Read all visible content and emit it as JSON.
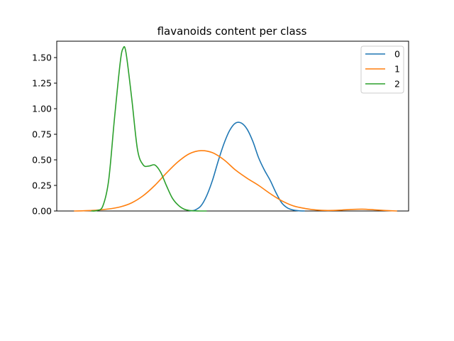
{
  "chart_data": {
    "type": "line",
    "title": "flavanoids content per class",
    "xlabel": "",
    "ylabel": "",
    "xlim": [
      -0.1,
      6.0
    ],
    "ylim": [
      0.0,
      1.66
    ],
    "yticks": [
      0.0,
      0.25,
      0.5,
      0.75,
      1.0,
      1.25,
      1.5
    ],
    "ytick_labels": [
      "0.00",
      "0.25",
      "0.50",
      "0.75",
      "1.00",
      "1.25",
      "1.50"
    ],
    "show_xticks": false,
    "grid": false,
    "legend": "top-right",
    "series": [
      {
        "name": "0",
        "color": "#1f77b4",
        "x": [
          2.2,
          2.3,
          2.4,
          2.5,
          2.6,
          2.7,
          2.8,
          2.9,
          3.0,
          3.1,
          3.2,
          3.3,
          3.4,
          3.5,
          3.6,
          3.7,
          3.8,
          3.9,
          4.0,
          4.1,
          4.2
        ],
        "y": [
          0.0,
          0.01,
          0.05,
          0.15,
          0.3,
          0.49,
          0.66,
          0.79,
          0.86,
          0.86,
          0.8,
          0.68,
          0.52,
          0.4,
          0.3,
          0.18,
          0.08,
          0.03,
          0.01,
          0.002,
          0.0
        ]
      },
      {
        "name": "1",
        "color": "#ff7f0e",
        "x": [
          0.2,
          0.5,
          0.8,
          1.0,
          1.2,
          1.4,
          1.6,
          1.8,
          2.0,
          2.2,
          2.4,
          2.6,
          2.8,
          3.0,
          3.2,
          3.4,
          3.6,
          3.8,
          4.0,
          4.2,
          4.4,
          4.6,
          4.8,
          5.0,
          5.2,
          5.4,
          5.6,
          5.8
        ],
        "y": [
          0.0,
          0.005,
          0.02,
          0.04,
          0.08,
          0.15,
          0.25,
          0.37,
          0.48,
          0.56,
          0.59,
          0.57,
          0.5,
          0.4,
          0.32,
          0.25,
          0.17,
          0.1,
          0.05,
          0.025,
          0.01,
          0.005,
          0.008,
          0.015,
          0.018,
          0.012,
          0.005,
          0.0
        ]
      },
      {
        "name": "2",
        "color": "#2ca02c",
        "x": [
          0.5,
          0.6,
          0.7,
          0.8,
          0.9,
          1.0,
          1.05,
          1.1,
          1.2,
          1.3,
          1.4,
          1.5,
          1.6,
          1.7,
          1.8,
          1.9,
          2.0,
          2.1,
          2.2,
          2.3,
          2.4,
          2.5
        ],
        "y": [
          0.0,
          0.005,
          0.05,
          0.3,
          0.9,
          1.45,
          1.59,
          1.55,
          1.1,
          0.6,
          0.45,
          0.44,
          0.45,
          0.38,
          0.25,
          0.13,
          0.06,
          0.02,
          0.005,
          0.001,
          0.0,
          0.0
        ]
      }
    ]
  }
}
